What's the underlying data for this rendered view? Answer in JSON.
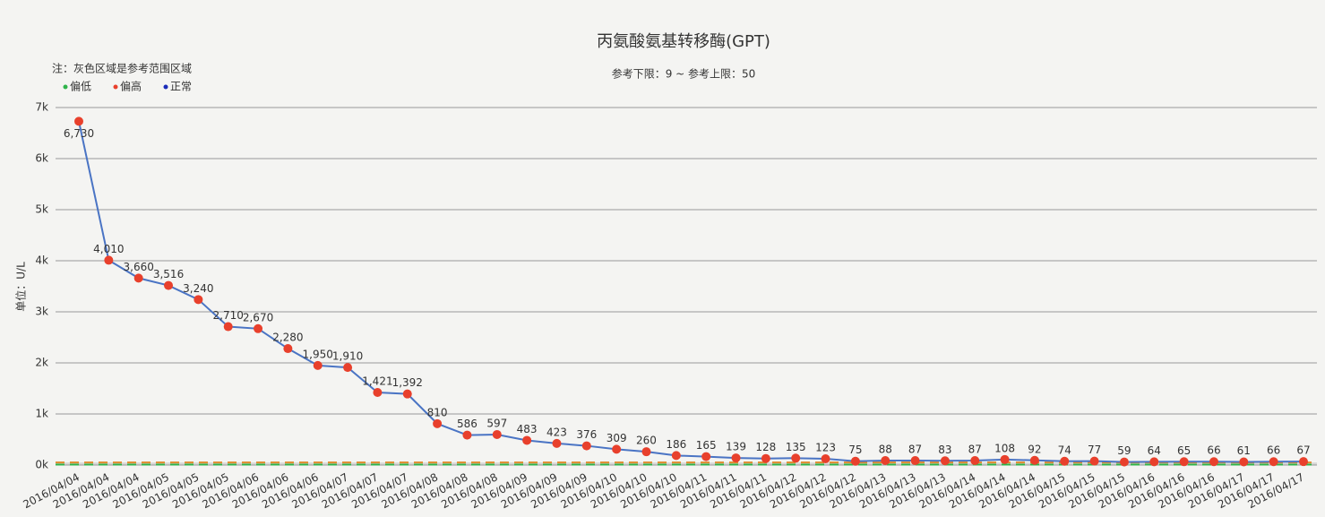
{
  "chart_data": {
    "type": "line",
    "title": "丙氨酸氨基转移酶(GPT)",
    "subtitle": "参考下限：9 ~ 参考上限：50",
    "note": "注：灰色区域是参考范围区域",
    "y_label": "单位：U/L",
    "legend": [
      {
        "name": "偏低",
        "color": "#2fb34a"
      },
      {
        "name": "偏高",
        "color": "#e8402c"
      },
      {
        "name": "正常",
        "color": "#1a2bb8"
      }
    ],
    "reference_range": [
      9,
      50
    ],
    "categories": [
      "2016/04/04",
      "2016/04/04",
      "2016/04/04",
      "2016/04/05",
      "2016/04/05",
      "2016/04/05",
      "2016/04/06",
      "2016/04/06",
      "2016/04/06",
      "2016/04/07",
      "2016/04/07",
      "2016/04/07",
      "2016/04/08",
      "2016/04/08",
      "2016/04/08",
      "2016/04/09",
      "2016/04/09",
      "2016/04/09",
      "2016/04/10",
      "2016/04/10",
      "2016/04/10",
      "2016/04/11",
      "2016/04/11",
      "2016/04/11",
      "2016/04/12",
      "2016/04/12",
      "2016/04/12",
      "2016/04/13",
      "2016/04/13",
      "2016/04/13",
      "2016/04/14",
      "2016/04/14",
      "2016/04/14",
      "2016/04/15",
      "2016/04/15",
      "2016/04/15",
      "2016/04/16",
      "2016/04/16",
      "2016/04/16",
      "2016/04/17",
      "2016/04/17",
      "2016/04/17"
    ],
    "series": [
      {
        "color": "#4a74c4",
        "marker_color": "#e8402c",
        "values": [
          6730,
          4010,
          3660,
          3516,
          3240,
          2710,
          2670,
          2280,
          1950,
          1910,
          1421,
          1392,
          810,
          586,
          597,
          483,
          423,
          376,
          309,
          260,
          186,
          165,
          139,
          128,
          135,
          123,
          75,
          88,
          87,
          83,
          87,
          108,
          92,
          74,
          77,
          59,
          64,
          65,
          66,
          61,
          66,
          67
        ],
        "value_labels": [
          "6,730",
          "4,010",
          "3,660",
          "3,516",
          "3,240",
          "2,710",
          "2,670",
          "2,280",
          "1,950",
          "1,910",
          "1,421",
          "1,392",
          "810",
          "586",
          "597",
          "483",
          "423",
          "376",
          "309",
          "260",
          "186",
          "165",
          "139",
          "128",
          "135",
          "123",
          "75",
          "88",
          "87",
          "83",
          "87",
          "108",
          "92",
          "74",
          "77",
          "59",
          "64",
          "65",
          "66",
          "61",
          "66",
          "67"
        ]
      }
    ],
    "ylim": [
      0,
      7000
    ],
    "yticks": [
      {
        "value": 0,
        "label": "0k"
      },
      {
        "value": 1000,
        "label": "1k"
      },
      {
        "value": 2000,
        "label": "2k"
      },
      {
        "value": 3000,
        "label": "3k"
      },
      {
        "value": 4000,
        "label": "4k"
      },
      {
        "value": 5000,
        "label": "5k"
      },
      {
        "value": 6000,
        "label": "6k"
      },
      {
        "value": 7000,
        "label": "7k"
      }
    ],
    "grid": true
  }
}
